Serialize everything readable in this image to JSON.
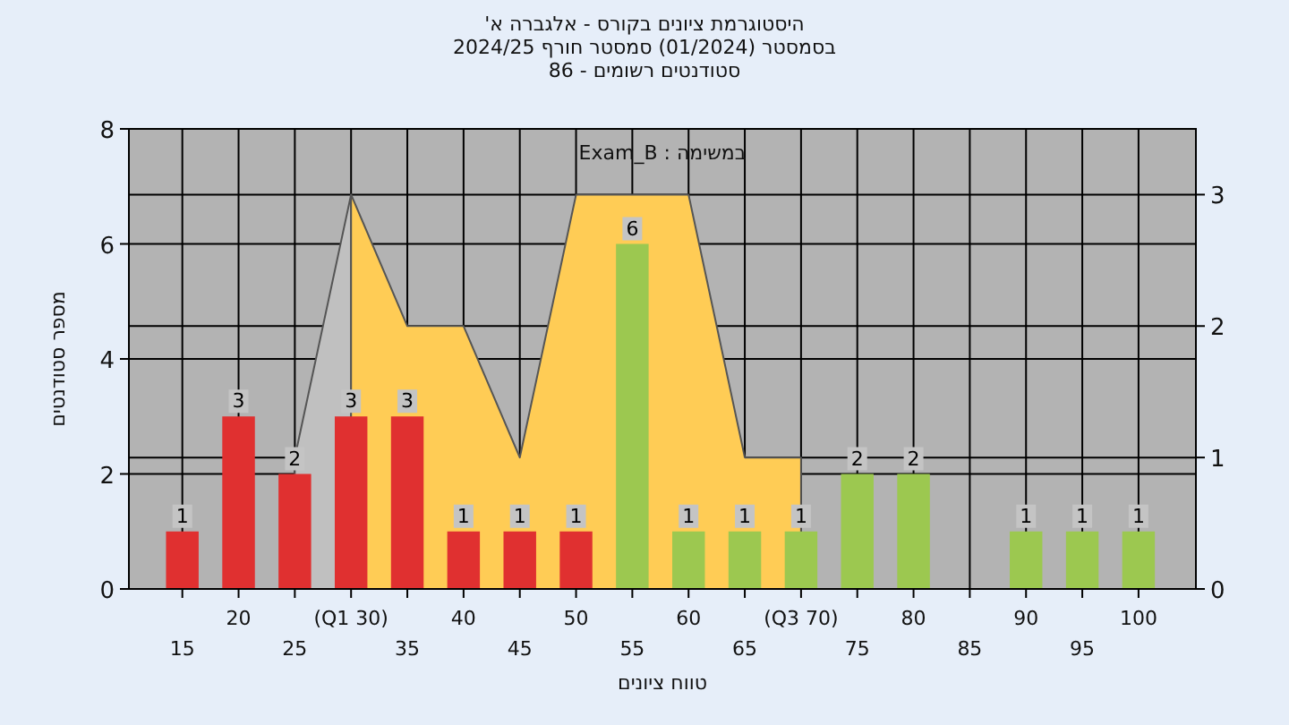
{
  "chart_data": {
    "type": "bar",
    "title": "היסטוגרמת ציונים בקורס - אלגברה א'",
    "subtitle": "בסמסטר  (01/2024)  סמסטר חורף 2024/25",
    "annotations": [
      "סטודנטים רשומים - 86",
      "במשימה : Exam_B"
    ],
    "xlabel": "טווח ציונים",
    "ylabel": "מספר סטודנטים",
    "categories": [
      "15",
      "20",
      "25",
      "(Q1 30)",
      "35",
      "40",
      "45",
      "50",
      "55",
      "60",
      "65",
      "(Q3 70)",
      "75",
      "80",
      "85",
      "90",
      "95",
      "100"
    ],
    "series": [
      {
        "type": "area",
        "axis": "y2",
        "color": "#c0c0c0",
        "values": [
          null,
          null,
          1,
          3,
          null,
          null,
          null,
          null,
          null,
          null,
          null,
          null,
          null,
          null,
          null,
          null,
          null,
          null
        ]
      },
      {
        "type": "area",
        "axis": "y2",
        "color": "#ffcc55",
        "values": [
          null,
          null,
          null,
          3,
          2,
          2,
          1,
          3,
          3,
          3,
          1,
          1,
          null,
          null,
          null,
          null,
          null,
          null
        ]
      },
      {
        "values": [
          1,
          3,
          2,
          3,
          3,
          1,
          1,
          1,
          6,
          1,
          1,
          1,
          2,
          2,
          null,
          1,
          1,
          1
        ],
        "colors": [
          "#e03030",
          "#e03030",
          "#e03030",
          "#e03030",
          "#e03030",
          "#e03030",
          "#e03030",
          "#e03030",
          "#9cc850",
          "#9cc850",
          "#9cc850",
          "#9cc850",
          "#9cc850",
          "#9cc850",
          null,
          "#9cc850",
          "#9cc850",
          "#9cc850"
        ],
        "value_labels": [
          "1",
          "3",
          "2",
          "3",
          "3",
          "1",
          "1",
          "1",
          "6",
          "1",
          "1",
          "1",
          "2",
          "2",
          null,
          "1",
          "1",
          "1"
        ]
      }
    ],
    "ylim": [
      0,
      8
    ],
    "yticks": [
      0,
      2,
      4,
      6,
      8
    ],
    "y2lim": [
      0,
      3.5
    ],
    "y2ticks": [
      0,
      1,
      2,
      3
    ],
    "grid": true
  }
}
